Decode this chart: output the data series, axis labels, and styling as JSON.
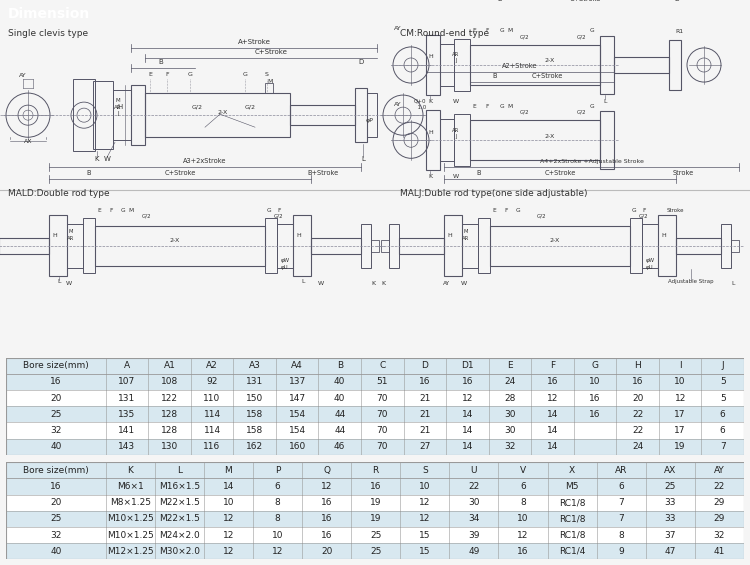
{
  "title": "Dimension",
  "title_bg": "#6b7b8d",
  "title_fg": "#ffffff",
  "bg_color": "#d8e8f0",
  "white_bg": "#f5f5f5",
  "section_labels": [
    "Single clevis type",
    "CM:Round-end type",
    "MALD:Double rod type",
    "MALJ:Duble rod type(one side adjustable)"
  ],
  "table1_header": [
    "Bore size(mm)",
    "A",
    "A1",
    "A2",
    "A3",
    "A4",
    "B",
    "C",
    "D",
    "D1",
    "E",
    "F",
    "G",
    "H",
    "I",
    "J"
  ],
  "table1_rows": [
    [
      "16",
      "107",
      "108",
      "92",
      "131",
      "137",
      "40",
      "51",
      "16",
      "16",
      "24",
      "16",
      "10",
      "16",
      "10",
      "5"
    ],
    [
      "20",
      "131",
      "122",
      "110",
      "150",
      "147",
      "40",
      "70",
      "21",
      "12",
      "28",
      "12",
      "16",
      "20",
      "12",
      "5"
    ],
    [
      "25",
      "135",
      "128",
      "114",
      "158",
      "154",
      "44",
      "70",
      "21",
      "14",
      "30",
      "14",
      "16",
      "22",
      "17",
      "6"
    ],
    [
      "32",
      "141",
      "128",
      "114",
      "158",
      "154",
      "44",
      "70",
      "21",
      "14",
      "30",
      "14",
      "",
      "22",
      "17",
      "6"
    ],
    [
      "40",
      "143",
      "130",
      "116",
      "162",
      "160",
      "46",
      "70",
      "27",
      "14",
      "32",
      "14",
      "",
      "24",
      "19",
      "7"
    ]
  ],
  "table2_header": [
    "Bore size(mm)",
    "K",
    "L",
    "M",
    "P",
    "Q",
    "R",
    "S",
    "U",
    "V",
    "X",
    "AR",
    "AX",
    "AY"
  ],
  "table2_rows": [
    [
      "16",
      "M6×1",
      "M16×1.5",
      "14",
      "6",
      "12",
      "16",
      "10",
      "22",
      "6",
      "M5",
      "6",
      "25",
      "22"
    ],
    [
      "20",
      "M8×1.25",
      "M22×1.5",
      "10",
      "8",
      "16",
      "19",
      "12",
      "30",
      "8",
      "RC1/8",
      "7",
      "33",
      "29"
    ],
    [
      "25",
      "M10×1.25",
      "M22×1.5",
      "12",
      "8",
      "16",
      "19",
      "12",
      "34",
      "10",
      "RC1/8",
      "7",
      "33",
      "29"
    ],
    [
      "32",
      "M10×1.25",
      "M24×2.0",
      "12",
      "10",
      "16",
      "25",
      "15",
      "39",
      "12",
      "RC1/8",
      "8",
      "37",
      "32"
    ],
    [
      "40",
      "M12×1.25",
      "M30×2.0",
      "12",
      "12",
      "20",
      "25",
      "15",
      "49",
      "16",
      "RC1/4",
      "9",
      "47",
      "41"
    ]
  ],
  "row_colors_odd": "#d8e8f0",
  "row_colors_even": "#ffffff",
  "header_color": "#d8e8f0",
  "line_color": "#555566",
  "dim_line_color": "#555566",
  "font_size_table": 6.5,
  "font_size_small": 5.5,
  "font_size_label": 6.5
}
